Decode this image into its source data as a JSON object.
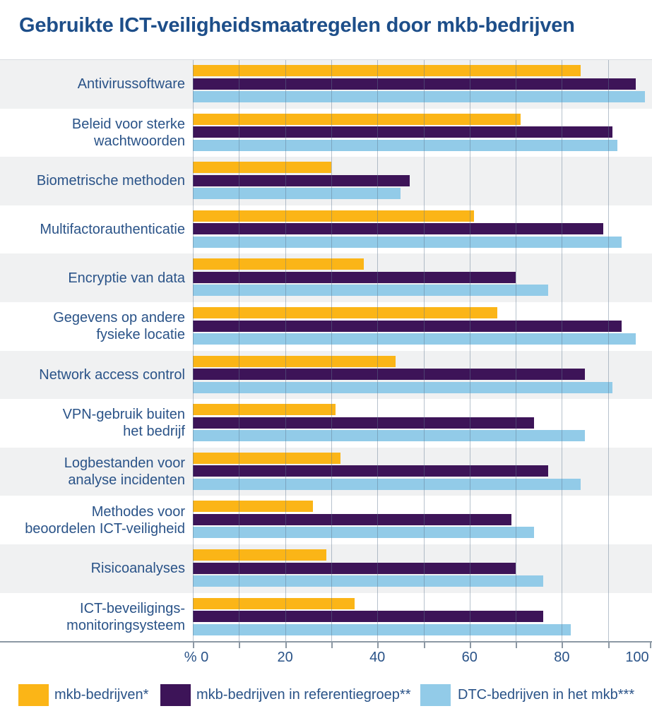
{
  "title": "Gebruikte ICT-veiligheidsmaatregelen door mkb-bedrijven",
  "chart_data": {
    "type": "bar",
    "orientation": "horizontal",
    "unit": "%",
    "title": "Gebruikte ICT-veiligheidsmaatregelen door mkb-bedrijven",
    "categories": [
      "Antivirussoftware",
      "Beleid voor sterke wachtwoorden",
      "Biometrische methoden",
      "Multifactorauthenticatie",
      "Encryptie van data",
      "Gegevens op andere fysieke locatie",
      "Network access control",
      "VPN-gebruik buiten het bedrijf",
      "Logbestanden voor analyse incidenten",
      "Methodes voor beoordelen ICT-veiligheid",
      "Risicoanalyses",
      "ICT-beveiligings-monitoringsysteem"
    ],
    "category_display_lines": [
      [
        "Antivirussoftware"
      ],
      [
        "Beleid voor sterke",
        "wachtwoorden"
      ],
      [
        "Biometrische methoden"
      ],
      [
        "Multifactorauthenticatie"
      ],
      [
        "Encryptie van data"
      ],
      [
        "Gegevens op andere",
        "fysieke locatie"
      ],
      [
        "Network access control"
      ],
      [
        "VPN-gebruik buiten",
        "het bedrijf"
      ],
      [
        "Logbestanden voor",
        "analyse incidenten"
      ],
      [
        "Methodes voor",
        "beoordelen ICT-veiligheid"
      ],
      [
        "Risicoanalyses"
      ],
      [
        "ICT-beveiligings-",
        "monitoringsysteem"
      ]
    ],
    "series": [
      {
        "name": "mkb-bedrijven*",
        "color": "#FBB517",
        "values": [
          84,
          71,
          30,
          61,
          37,
          66,
          44,
          31,
          32,
          26,
          29,
          35
        ]
      },
      {
        "name": "mkb-bedrijven in referentiegroep**",
        "color": "#3D1458",
        "values": [
          96,
          91,
          47,
          89,
          70,
          93,
          85,
          74,
          77,
          69,
          70,
          76
        ]
      },
      {
        "name": "DTC-bedrijven in het mkb***",
        "color": "#92CBE8",
        "values": [
          98,
          92,
          45,
          93,
          77,
          96,
          91,
          85,
          84,
          74,
          76,
          82
        ]
      }
    ],
    "x_axis": {
      "range": [
        0,
        100
      ],
      "gridlines_every": 10,
      "tick_values": [
        0,
        20,
        40,
        60,
        80,
        100
      ],
      "tick_labels": [
        "% 0",
        "20",
        "40",
        "60",
        "80",
        "100"
      ]
    },
    "legend_position": "bottom",
    "row_band_colors": [
      "#F0F1F2",
      "#FFFFFF"
    ]
  },
  "colors": {
    "title_text": "#1D4E89",
    "label_text": "#2A5388",
    "axis_line": "#8C98A4",
    "gridline": "#A9BDCD",
    "band_gray": "#F0F1F2",
    "background": "#FFFFFF"
  }
}
